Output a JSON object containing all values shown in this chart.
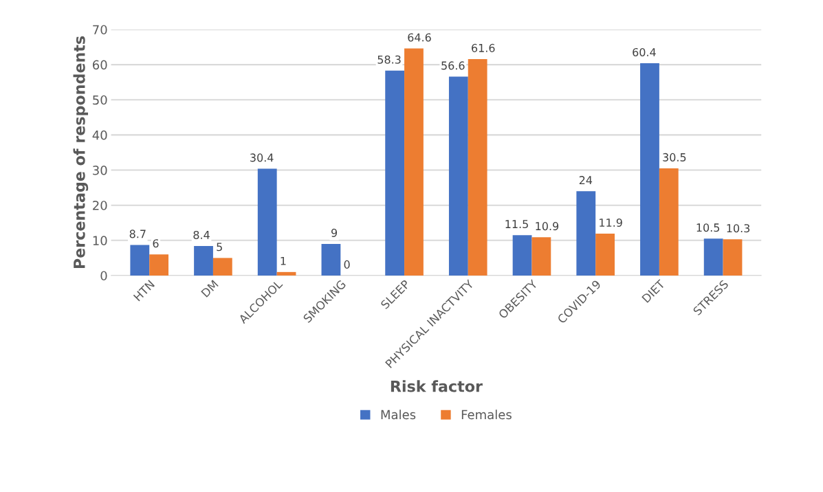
{
  "chart_data": {
    "type": "bar",
    "xlabel": "Risk factor",
    "ylabel": "Percentage of respondents",
    "categories": [
      "HTN",
      "DM",
      "ALCOHOL",
      "SMOKING",
      "SLEEP",
      "PHYSICAL INACTVITY",
      "OBESITY",
      "COVID-19",
      "DIET",
      "STRESS"
    ],
    "series": [
      {
        "name": "Males",
        "color": "#4472c4",
        "values": [
          8.7,
          8.4,
          30.4,
          9,
          58.3,
          56.6,
          11.5,
          24,
          60.4,
          10.5
        ]
      },
      {
        "name": "Females",
        "color": "#ed7d31",
        "values": [
          6,
          5,
          1,
          0,
          64.6,
          61.6,
          10.9,
          11.9,
          30.5,
          10.3
        ]
      }
    ],
    "ylim": [
      0,
      70
    ],
    "yticks": [
      0,
      10,
      20,
      30,
      40,
      50,
      60,
      70
    ],
    "grid": "y",
    "legend": "bottom",
    "data_labels": true
  }
}
